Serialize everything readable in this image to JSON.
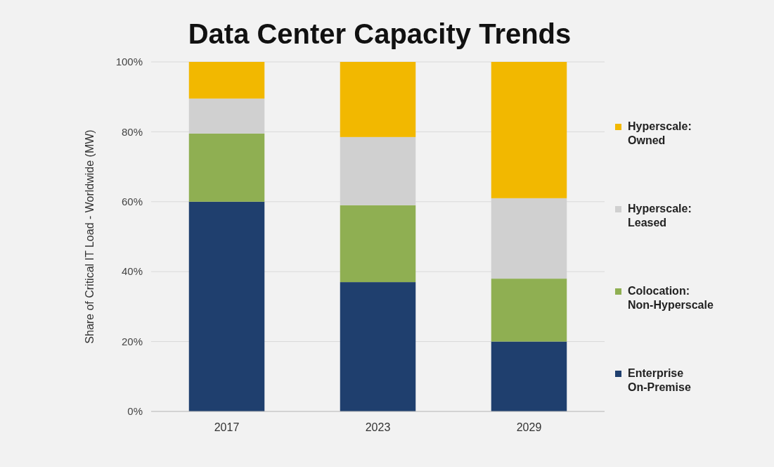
{
  "chart_data": {
    "type": "bar",
    "title": "Data Center Capacity Trends",
    "ylabel": "Share of Critical IT Load - Worldwide (MW)",
    "categories": [
      "2017",
      "2023",
      "2029"
    ],
    "stacked": true,
    "ylim": [
      0,
      100
    ],
    "yticks": [
      {
        "value": 0,
        "label": "0%"
      },
      {
        "value": 20,
        "label": "20%"
      },
      {
        "value": 40,
        "label": "40%"
      },
      {
        "value": 60,
        "label": "60%"
      },
      {
        "value": 80,
        "label": "80%"
      },
      {
        "value": 100,
        "label": "100%"
      }
    ],
    "grid": "y",
    "legend": "right",
    "series": [
      {
        "name": "Enterprise\nOn-Premise",
        "color": "#1f3f6e",
        "values": [
          60,
          37,
          20
        ]
      },
      {
        "name": "Colocation:\nNon-Hyperscale",
        "color": "#8faf52",
        "values": [
          19.5,
          22,
          18
        ]
      },
      {
        "name": "Hyperscale:\nLeased",
        "color": "#d0d0d0",
        "values": [
          10,
          19.5,
          23
        ]
      },
      {
        "name": "Hyperscale:\nOwned",
        "color": "#f2b800",
        "values": [
          10.5,
          21.5,
          39
        ]
      }
    ]
  }
}
